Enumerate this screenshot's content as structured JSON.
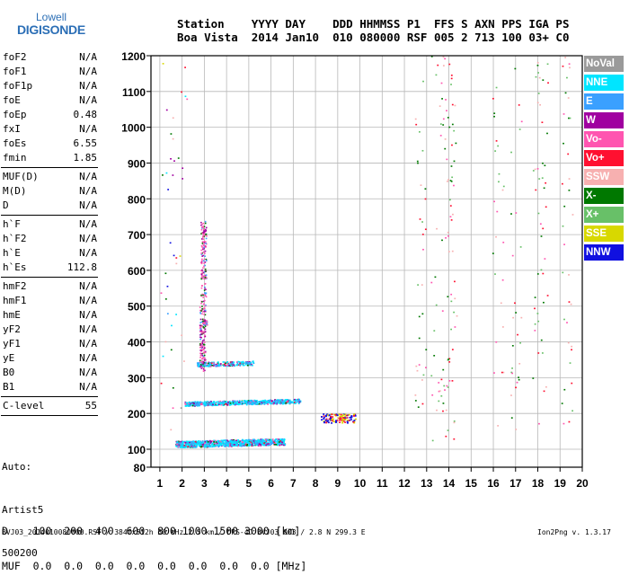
{
  "logo": {
    "top": "Lowell",
    "main": "DIGISONDE"
  },
  "header": {
    "labels": "Station    YYYY DAY    DDD HHMMSS P1  FFS S AXN PPS IGA PS",
    "values": "Boa Vista  2014 Jan10  010 080000 RSF 005 2 713 100 03+ C0"
  },
  "params": {
    "group1": [
      {
        "name": "foF2",
        "value": "N/A"
      },
      {
        "name": "foF1",
        "value": "N/A"
      },
      {
        "name": "foF1p",
        "value": "N/A"
      },
      {
        "name": "foE",
        "value": "N/A"
      },
      {
        "name": "foEp",
        "value": "0.48"
      },
      {
        "name": "fxI",
        "value": "N/A"
      },
      {
        "name": "foEs",
        "value": "6.55"
      },
      {
        "name": "fmin",
        "value": "1.85"
      }
    ],
    "group2": [
      {
        "name": "MUF(D)",
        "value": "N/A"
      },
      {
        "name": "M(D)",
        "value": "N/A"
      },
      {
        "name": "D",
        "value": "N/A"
      }
    ],
    "group3": [
      {
        "name": "h`F",
        "value": "N/A"
      },
      {
        "name": "h`F2",
        "value": "N/A"
      },
      {
        "name": "h`E",
        "value": "N/A"
      },
      {
        "name": "h`Es",
        "value": "112.8"
      }
    ],
    "group4": [
      {
        "name": "hmF2",
        "value": "N/A"
      },
      {
        "name": "hmF1",
        "value": "N/A"
      },
      {
        "name": "hmE",
        "value": "N/A"
      },
      {
        "name": "yF2",
        "value": "N/A"
      },
      {
        "name": "yF1",
        "value": "N/A"
      },
      {
        "name": "yE",
        "value": "N/A"
      },
      {
        "name": "B0",
        "value": "N/A"
      },
      {
        "name": "B1",
        "value": "N/A"
      }
    ],
    "group5": [
      {
        "name": "C-level",
        "value": "55"
      }
    ]
  },
  "auto": {
    "line1": "Auto:",
    "line2": "Artist5",
    "line3": "500200"
  },
  "dmuf": {
    "d_line": "D    100  200  400  600  800 1000 1500 3000 [km]",
    "muf_line": "MUF  0.0  0.0  0.0  0.0  0.0  0.0  0.0  0.0 [MHz]"
  },
  "footer": {
    "left": "BVJ03_2014010080000.RSF / 384fx512h 50 kHz 2.5 km / DPS-4D BVJ03 003 / 2.8 N 299.3 E",
    "right": "Ion2Png v. 1.3.17"
  },
  "legend": [
    {
      "label": "NoVal",
      "color": "#9a9a9a"
    },
    {
      "label": "NNE",
      "color": "#00e5ff"
    },
    {
      "label": "E",
      "color": "#3aa0ff"
    },
    {
      "label": "W",
      "color": "#a000a0"
    },
    {
      "label": "Vo-",
      "color": "#ff55b0"
    },
    {
      "label": "Vo+",
      "color": "#ff1030"
    },
    {
      "label": "SSW",
      "color": "#f7b0b0"
    },
    {
      "label": "X-",
      "color": "#007800"
    },
    {
      "label": "X+",
      "color": "#68c068"
    },
    {
      "label": "SSE",
      "color": "#d8d800"
    },
    {
      "label": "NNW",
      "color": "#1010e0"
    }
  ],
  "chart_data": {
    "type": "scatter",
    "xlim": [
      1,
      20
    ],
    "ylim": [
      80,
      1200
    ],
    "x_ticks": [
      "1",
      "2",
      "3",
      "4",
      "5",
      "6",
      "7",
      "8",
      "9",
      "10",
      "11",
      "12",
      "13",
      "14",
      "15",
      "16",
      "17",
      "18",
      "19",
      "20"
    ],
    "y_ticks": [
      "80",
      "100",
      "200",
      "300",
      "400",
      "500",
      "600",
      "700",
      "800",
      "900",
      "1000",
      "1100",
      "1200"
    ],
    "grid": true,
    "legend_position": "right",
    "traces": [
      {
        "name": "Es sporadic E layer trace",
        "color": "#00e5ff",
        "x_range": [
          1.7,
          6.6
        ],
        "height": 115
      },
      {
        "name": "Es second multiple",
        "color": "#00e5ff",
        "x_range": [
          2.1,
          7.3
        ],
        "height": 228
      },
      {
        "name": "Es third multiple",
        "color": "#00e5ff",
        "x_range": [
          2.6,
          5.2
        ],
        "height": 338
      },
      {
        "name": "Es fourth multiple",
        "color": "#ff55b0",
        "x_range": [
          2.9,
          3.1
        ],
        "height": 455
      }
    ]
  }
}
